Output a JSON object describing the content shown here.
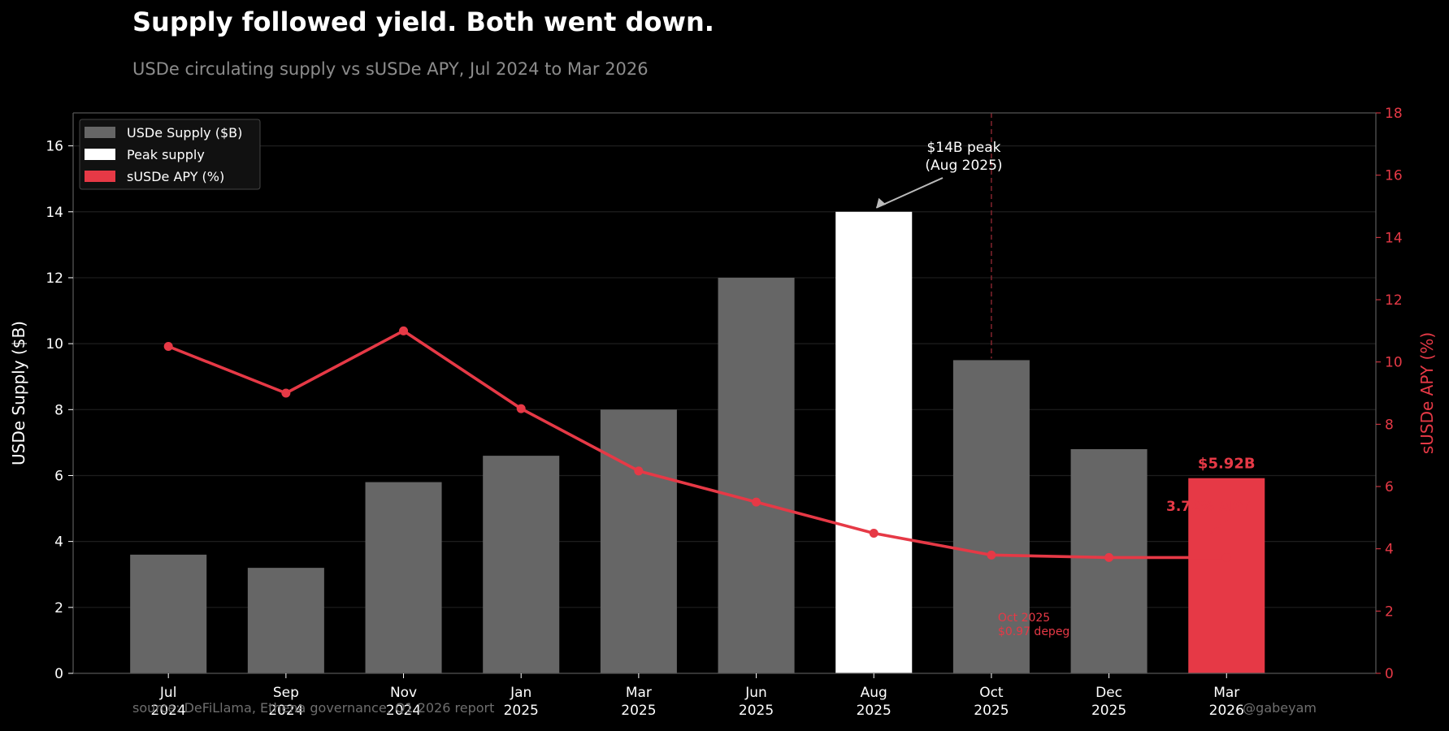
{
  "header": {
    "title": "Supply followed yield. Both went down.",
    "subtitle": "USDe circulating supply vs sUSDe APY, Jul 2024 to Mar 2026"
  },
  "footer": {
    "source": "source: DeFiLlama, Ethena governance, Q1 2026 report",
    "handle": "@gabeyam"
  },
  "colors": {
    "background": "#000000",
    "bar": "#666666",
    "peak": "#ffffff",
    "accent": "#e63946",
    "grid": "#1e1e1e",
    "text": "#ffffff",
    "muted": "#8c8c8c"
  },
  "chart_data": {
    "type": "bar",
    "categories": [
      "Jul\n2024",
      "Sep\n2024",
      "Nov\n2024",
      "Jan\n2025",
      "Mar\n2025",
      "Jun\n2025",
      "Aug\n2025",
      "Oct\n2025",
      "Dec\n2025",
      "Mar\n2026"
    ],
    "series": [
      {
        "name": "USDe Supply ($B)",
        "type": "bar",
        "axis": "left",
        "values": [
          3.6,
          3.2,
          5.8,
          6.6,
          8.0,
          12.0,
          14.0,
          9.5,
          6.8,
          5.92
        ]
      },
      {
        "name": "sUSDe APY (%)",
        "type": "line",
        "axis": "right",
        "values": [
          10.5,
          9.0,
          11.0,
          8.5,
          6.5,
          5.5,
          4.5,
          3.8,
          3.72,
          3.72
        ]
      }
    ],
    "highlight": {
      "peak_index": 6,
      "latest_index": 9
    },
    "legend": {
      "position": "top-left",
      "entries": [
        "USDe Supply ($B)",
        "Peak supply",
        "sUSDe APY (%)"
      ]
    },
    "ylabel": "USDe Supply ($B)",
    "y2label": "sUSDe APY (%)",
    "ylim": [
      0,
      17
    ],
    "y2lim": [
      0,
      18
    ],
    "yticks": [
      0,
      2,
      4,
      6,
      8,
      10,
      12,
      14,
      16
    ],
    "y2ticks": [
      0,
      2,
      4,
      6,
      8,
      10,
      12,
      14,
      16,
      18
    ],
    "grid": true,
    "annotations": {
      "peak_line1": "$14B peak",
      "peak_line2": "(Aug 2025)",
      "latest_value": "$5.92B",
      "latest_apy": "3.72% APY",
      "depeg_line1": "Oct 2025",
      "depeg_line2": "$0.97 depeg",
      "depeg_index": 7
    }
  }
}
